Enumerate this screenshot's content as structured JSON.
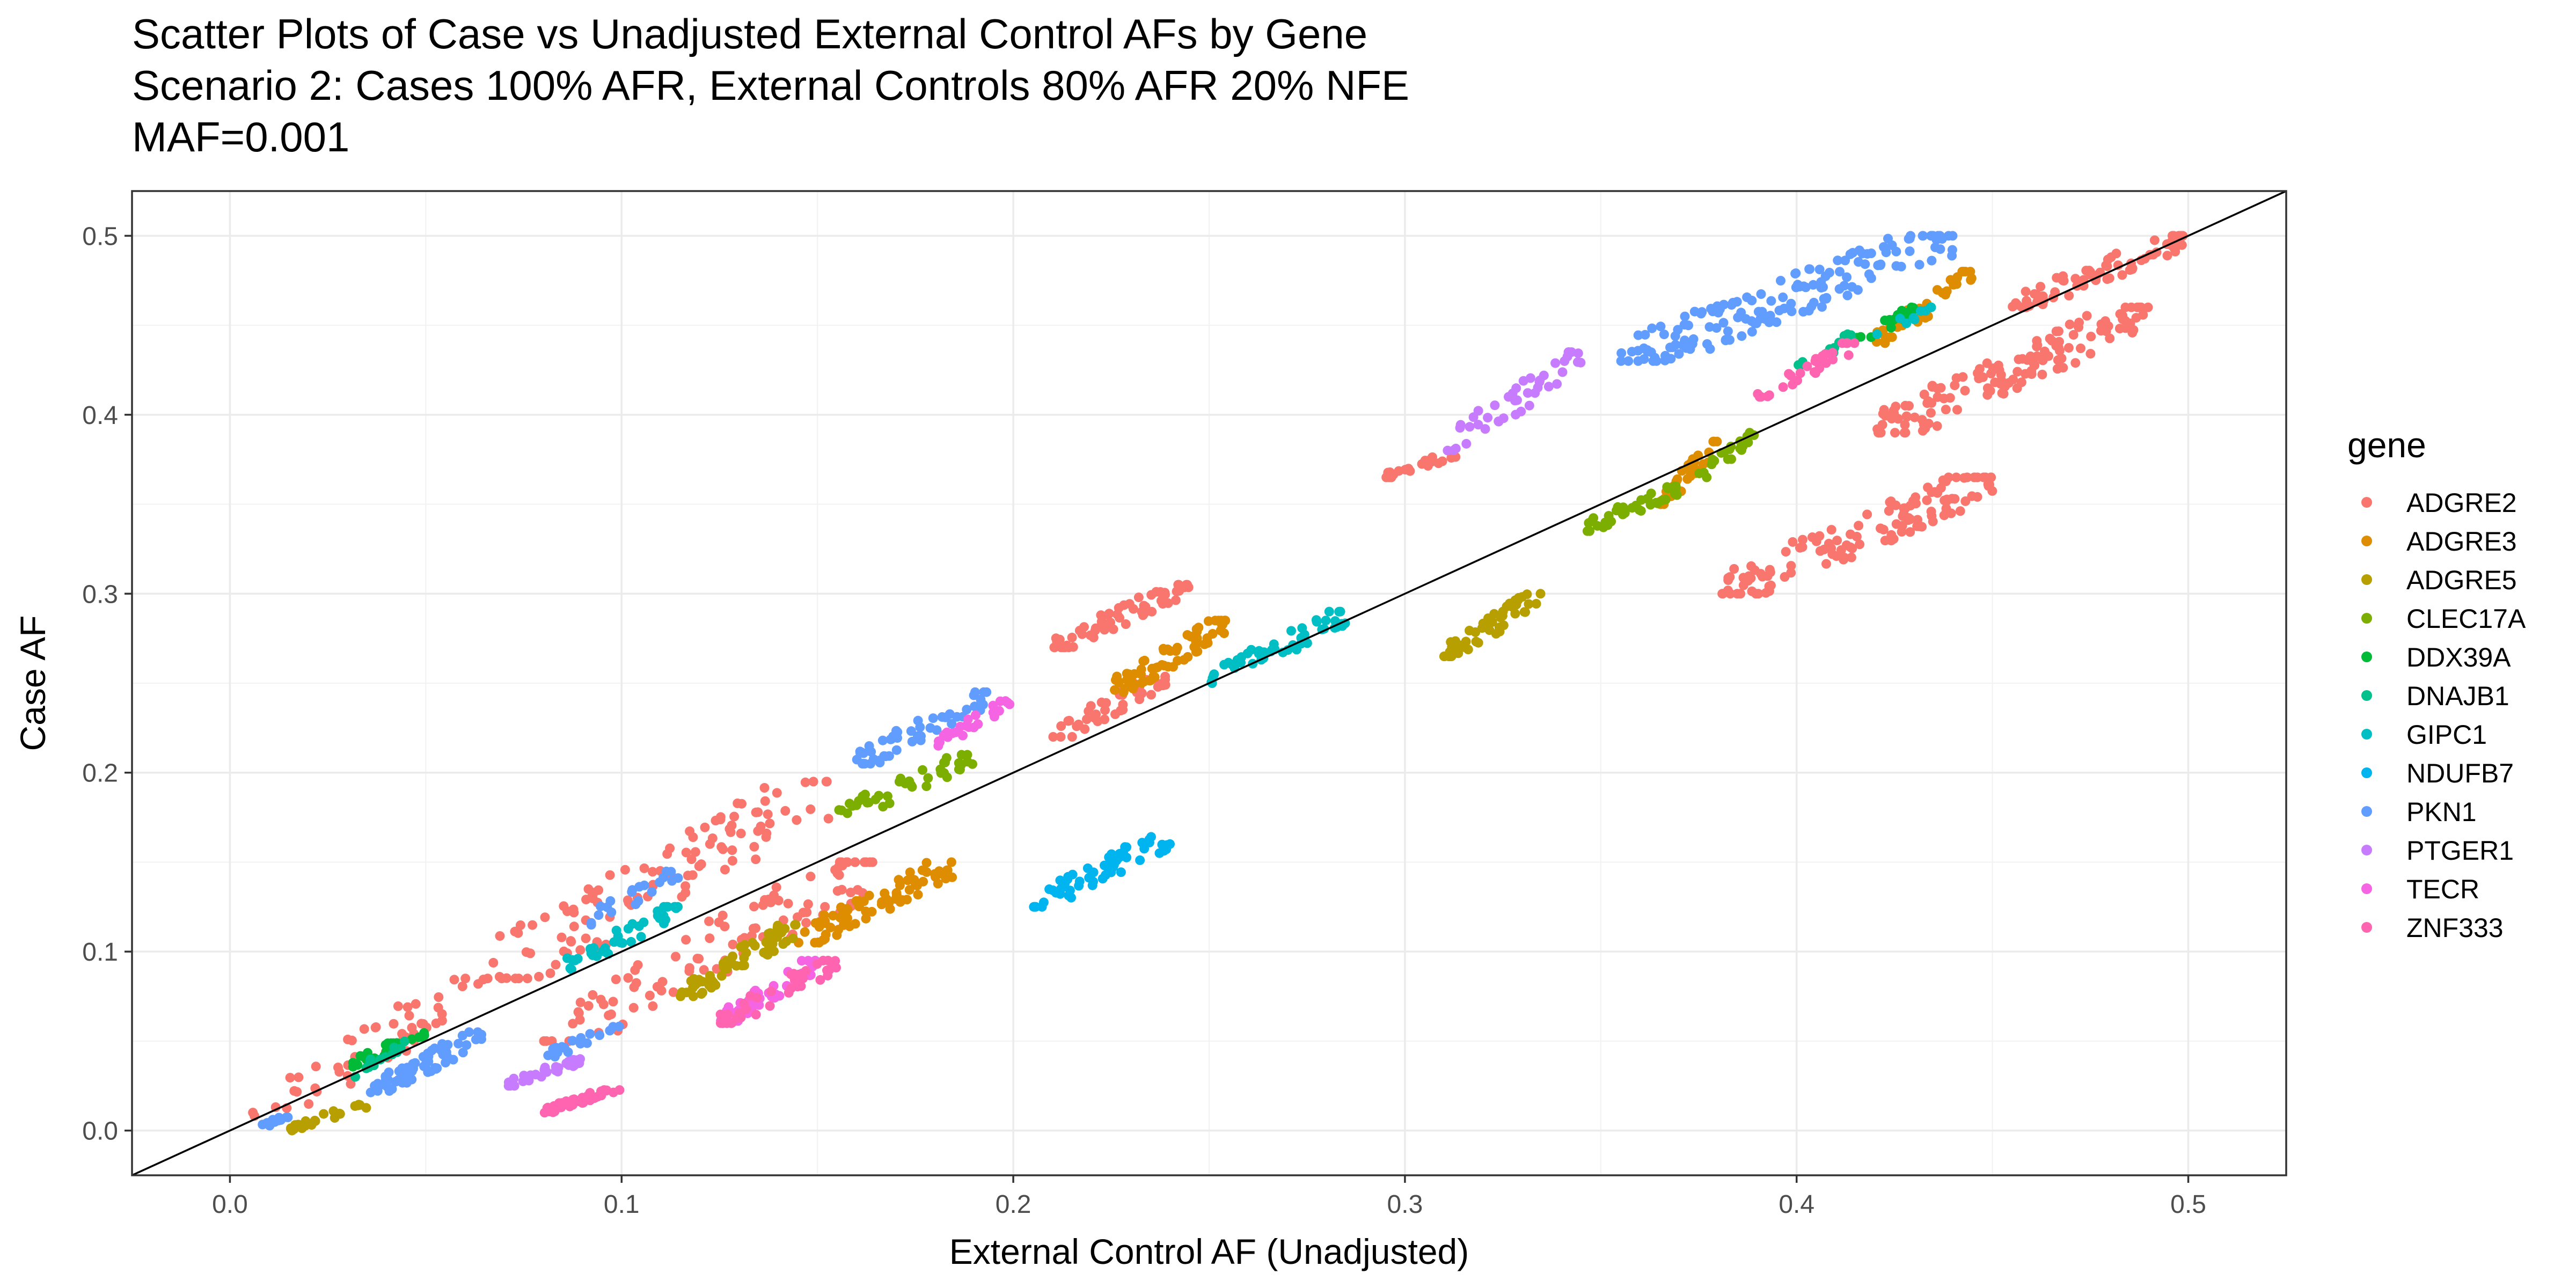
{
  "chart_data": {
    "type": "scatter",
    "title_lines": [
      "Scatter Plots of Case vs Unadjusted External Control AFs by Gene",
      "Scenario 2: Cases 100% AFR, External Controls 80% AFR 20% NFE",
      "MAF=0.001"
    ],
    "xlabel": "External Control AF (Unadjusted)",
    "ylabel": "Case AF",
    "xlim": [
      -0.025,
      0.525
    ],
    "ylim": [
      -0.025,
      0.525
    ],
    "xticks": [
      {
        "value": 0.0,
        "label": "0.0"
      },
      {
        "value": 0.1,
        "label": "0.1"
      },
      {
        "value": 0.2,
        "label": "0.2"
      },
      {
        "value": 0.3,
        "label": "0.3"
      },
      {
        "value": 0.4,
        "label": "0.4"
      },
      {
        "value": 0.5,
        "label": "0.5"
      }
    ],
    "yticks": [
      {
        "value": 0.0,
        "label": "0.0"
      },
      {
        "value": 0.1,
        "label": "0.1"
      },
      {
        "value": 0.2,
        "label": "0.2"
      },
      {
        "value": 0.3,
        "label": "0.3"
      },
      {
        "value": 0.4,
        "label": "0.4"
      },
      {
        "value": 0.5,
        "label": "0.5"
      }
    ],
    "grid": true,
    "reference_line": {
      "slope": 1,
      "intercept": 0,
      "color": "#000000"
    },
    "legend": {
      "title": "gene",
      "position": "right"
    },
    "series": [
      {
        "name": "ADGRE2",
        "color": "#F8766D",
        "clusters": [
          {
            "x": [
              0.005,
              0.065
            ],
            "y": [
              0.005,
              0.085
            ],
            "n": 50
          },
          {
            "x": [
              0.065,
              0.155
            ],
            "y": [
              0.085,
              0.195
            ],
            "n": 110
          },
          {
            "x": [
              0.21,
              0.245
            ],
            "y": [
              0.27,
              0.305
            ],
            "n": 60
          },
          {
            "x": [
              0.21,
              0.24
            ],
            "y": [
              0.22,
              0.255
            ],
            "n": 40
          },
          {
            "x": [
              0.08,
              0.165
            ],
            "y": [
              0.05,
              0.15
            ],
            "n": 100
          },
          {
            "x": [
              0.295,
              0.315
            ],
            "y": [
              0.365,
              0.38
            ],
            "n": 25
          },
          {
            "x": [
              0.42,
              0.49
            ],
            "y": [
              0.39,
              0.46
            ],
            "n": 140
          },
          {
            "x": [
              0.455,
              0.5
            ],
            "y": [
              0.46,
              0.5
            ],
            "n": 70
          },
          {
            "x": [
              0.38,
              0.45
            ],
            "y": [
              0.3,
              0.365
            ],
            "n": 130
          }
        ]
      },
      {
        "name": "ADGRE3",
        "color": "#DE8C00",
        "clusters": [
          {
            "x": [
              0.145,
              0.185
            ],
            "y": [
              0.105,
              0.15
            ],
            "n": 80
          },
          {
            "x": [
              0.225,
              0.255
            ],
            "y": [
              0.245,
              0.285
            ],
            "n": 70
          },
          {
            "x": [
              0.365,
              0.38
            ],
            "y": [
              0.35,
              0.385
            ],
            "n": 40
          },
          {
            "x": [
              0.42,
              0.445
            ],
            "y": [
              0.44,
              0.48
            ],
            "n": 40
          }
        ]
      },
      {
        "name": "ADGRE5",
        "color": "#B79F00",
        "clusters": [
          {
            "x": [
              0.015,
              0.035
            ],
            "y": [
              0.0,
              0.015
            ],
            "n": 25
          },
          {
            "x": [
              0.115,
              0.145
            ],
            "y": [
              0.075,
              0.115
            ],
            "n": 60
          },
          {
            "x": [
              0.31,
              0.335
            ],
            "y": [
              0.265,
              0.3
            ],
            "n": 50
          }
        ]
      },
      {
        "name": "CLEC17A",
        "color": "#7CAE00",
        "clusters": [
          {
            "x": [
              0.155,
              0.19
            ],
            "y": [
              0.175,
              0.21
            ],
            "n": 40
          },
          {
            "x": [
              0.345,
              0.37
            ],
            "y": [
              0.335,
              0.36
            ],
            "n": 40
          },
          {
            "x": [
              0.375,
              0.39
            ],
            "y": [
              0.365,
              0.39
            ],
            "n": 20
          }
        ]
      },
      {
        "name": "DDX39A",
        "color": "#00BA38",
        "clusters": [
          {
            "x": [
              0.03,
              0.05
            ],
            "y": [
              0.035,
              0.055
            ],
            "n": 25
          },
          {
            "x": [
              0.415,
              0.43
            ],
            "y": [
              0.44,
              0.46
            ],
            "n": 20
          }
        ]
      },
      {
        "name": "DNAJB1",
        "color": "#00C08B",
        "clusters": [
          {
            "x": [
              0.03,
              0.045
            ],
            "y": [
              0.03,
              0.05
            ],
            "n": 15
          },
          {
            "x": [
              0.4,
              0.415
            ],
            "y": [
              0.425,
              0.445
            ],
            "n": 15
          }
        ]
      },
      {
        "name": "GIPC1",
        "color": "#00BFC4",
        "clusters": [
          {
            "x": [
              0.085,
              0.115
            ],
            "y": [
              0.09,
              0.125
            ],
            "n": 40
          },
          {
            "x": [
              0.25,
              0.285
            ],
            "y": [
              0.25,
              0.29
            ],
            "n": 50
          },
          {
            "x": [
              0.42,
              0.435
            ],
            "y": [
              0.445,
              0.46
            ],
            "n": 10
          }
        ]
      },
      {
        "name": "NDUFB7",
        "color": "#00B4F0",
        "clusters": [
          {
            "x": [
              0.205,
              0.24
            ],
            "y": [
              0.125,
              0.165
            ],
            "n": 60
          }
        ]
      },
      {
        "name": "PKN1",
        "color": "#619CFF",
        "clusters": [
          {
            "x": [
              0.035,
              0.065
            ],
            "y": [
              0.02,
              0.055
            ],
            "n": 60
          },
          {
            "x": [
              0.005,
              0.015
            ],
            "y": [
              0.0,
              0.008
            ],
            "n": 12
          },
          {
            "x": [
              0.16,
              0.195
            ],
            "y": [
              0.205,
              0.245
            ],
            "n": 50
          },
          {
            "x": [
              0.09,
              0.115
            ],
            "y": [
              0.115,
              0.145
            ],
            "n": 20
          },
          {
            "x": [
              0.08,
              0.1
            ],
            "y": [
              0.04,
              0.06
            ],
            "n": 20
          },
          {
            "x": [
              0.355,
              0.44
            ],
            "y": [
              0.43,
              0.5
            ],
            "n": 160
          }
        ]
      },
      {
        "name": "PTGER1",
        "color": "#C77CFF",
        "clusters": [
          {
            "x": [
              0.07,
              0.09
            ],
            "y": [
              0.025,
              0.04
            ],
            "n": 30
          },
          {
            "x": [
              0.31,
              0.345
            ],
            "y": [
              0.38,
              0.435
            ],
            "n": 45
          }
        ]
      },
      {
        "name": "TECR",
        "color": "#F564E3",
        "clusters": [
          {
            "x": [
              0.18,
              0.2
            ],
            "y": [
              0.215,
              0.24
            ],
            "n": 25
          },
          {
            "x": [
              0.125,
              0.15
            ],
            "y": [
              0.06,
              0.095
            ],
            "n": 40
          }
        ]
      },
      {
        "name": "ZNF333",
        "color": "#FF64B0",
        "clusters": [
          {
            "x": [
              0.08,
              0.1
            ],
            "y": [
              0.01,
              0.025
            ],
            "n": 40
          },
          {
            "x": [
              0.125,
              0.155
            ],
            "y": [
              0.06,
              0.095
            ],
            "n": 40
          },
          {
            "x": [
              0.39,
              0.415
            ],
            "y": [
              0.41,
              0.44
            ],
            "n": 30
          }
        ]
      }
    ]
  }
}
